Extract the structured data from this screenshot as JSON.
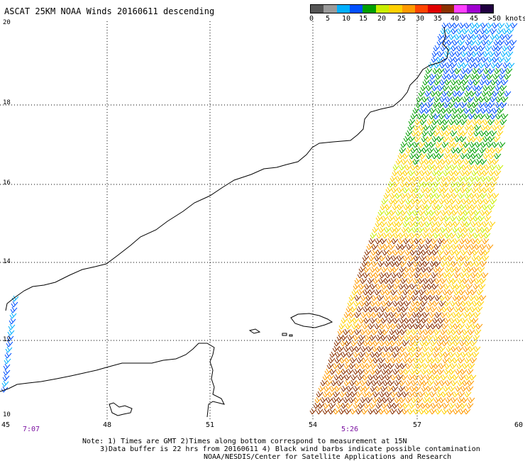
{
  "title": "ASCAT 25KM NOAA Winds 20160611 descending",
  "colorbar": {
    "colors": [
      "#555555",
      "#9a9a9a",
      "#00b0ff",
      "#0050ff",
      "#00a000",
      "#c8ee00",
      "#ffd000",
      "#ff9a00",
      "#ff4500",
      "#e00000",
      "#8b3000",
      "#ff40ff",
      "#a000d0",
      "#200040"
    ],
    "labels": [
      "0",
      "5",
      "10",
      "15",
      "20",
      "25",
      "30",
      "35",
      "40",
      "45",
      ">50 knots"
    ]
  },
  "axes": {
    "y_ticks": [
      "20",
      "18",
      "16",
      "14",
      "12",
      "10"
    ],
    "x_ticks": [
      "45",
      "48",
      "51",
      "54",
      "57",
      "60"
    ],
    "time_labels": [
      "7:07",
      "5:26"
    ]
  },
  "notes": {
    "line1": "Note: 1) Times are GMT 2)Times along bottom correspond to measurement at 15N",
    "line2": "3)Data buffer is 22 hrs from 20160611 4) Black wind barbs indicate possible contamination",
    "line3": "NOAA/NESDIS/Center for Satellite Applications and Research"
  }
}
